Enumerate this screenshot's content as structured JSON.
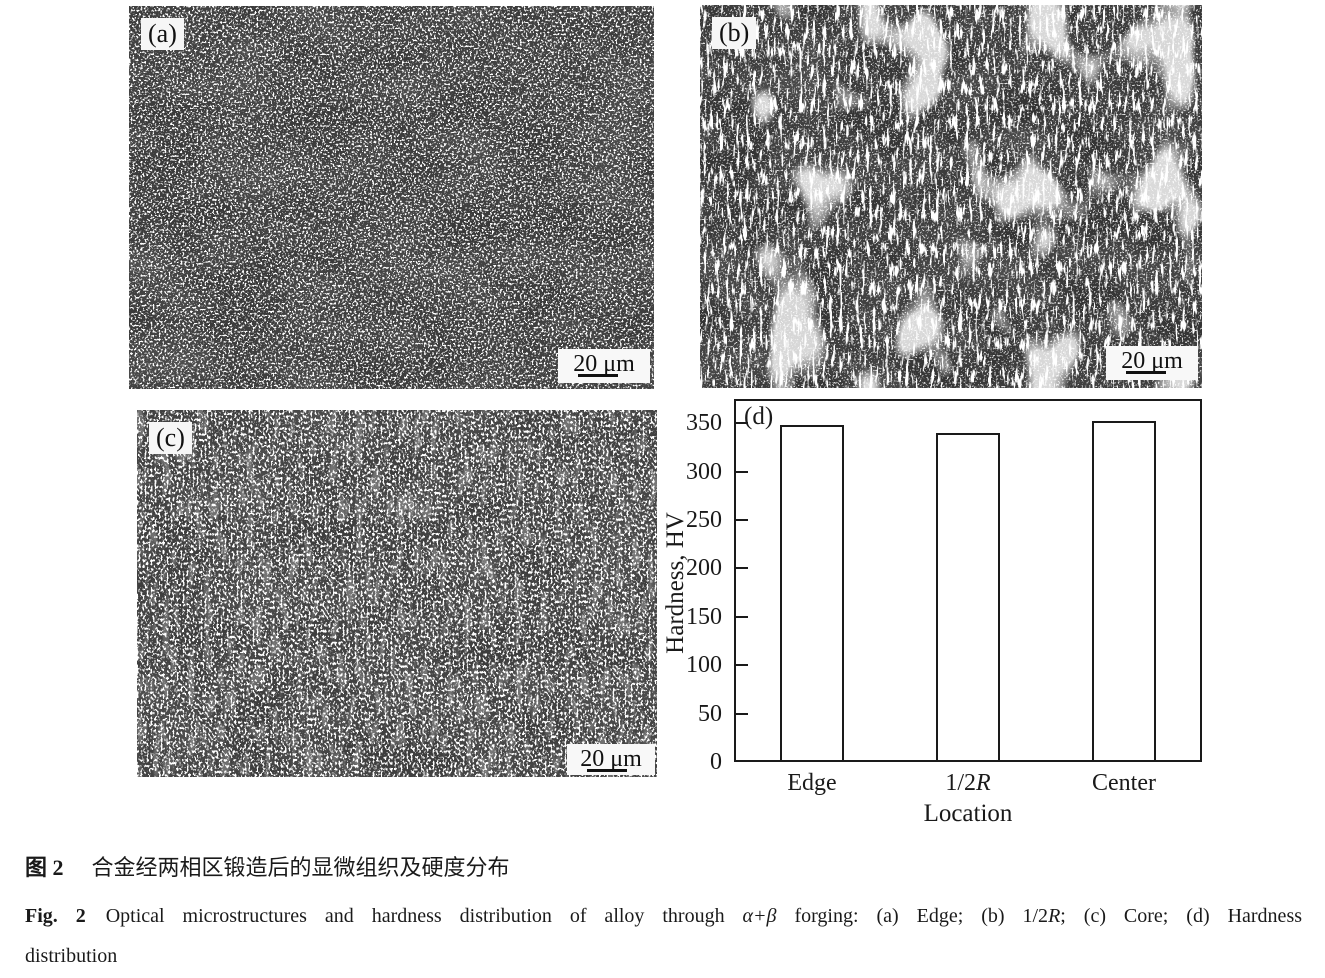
{
  "panels": {
    "a": {
      "label": "(a)",
      "scale_text": "20 μm"
    },
    "b": {
      "label": "(b)",
      "scale_text": "20 μm"
    },
    "c": {
      "label": "(c)",
      "scale_text": "20 μm"
    }
  },
  "chart_data": {
    "type": "bar",
    "panel_label": "(d)",
    "categories": [
      "Edge",
      "1/2R",
      "Center"
    ],
    "values": [
      348,
      340,
      352
    ],
    "title": "",
    "xlabel": "Location",
    "ylabel": "Hardness, HV",
    "ylim": [
      0,
      375
    ],
    "yticks": [
      0,
      50,
      100,
      150,
      200,
      250,
      300,
      350
    ],
    "grid": false,
    "legend": "none",
    "bar_fill": "#ffffff",
    "bar_border": "#1a1a1a",
    "category_segments": [
      [
        {
          "t": "Edge"
        }
      ],
      [
        {
          "t": "1/2"
        },
        {
          "t": "R",
          "s": "i"
        }
      ],
      [
        {
          "t": "Center"
        }
      ]
    ]
  },
  "caption": {
    "zh_label": "图 2",
    "zh_text": "合金经两相区锻造后的显微组织及硬度分布",
    "en_label": "Fig. 2",
    "en_line1_segments": [
      {
        "t": "Optical microstructures and hardness distribution of alloy through "
      },
      {
        "t": "α+β",
        "s": "i"
      },
      {
        "t": " forging: (a) Edge; (b) 1/2"
      },
      {
        "t": "R",
        "s": "i"
      },
      {
        "t": "; (c) Core; (d) Hardness"
      }
    ],
    "en_line2": "distribution"
  },
  "colors": {
    "ink": "#1a1a1a",
    "page_bg": "#ffffff",
    "micrograph_bg_a": "#3a3a3a",
    "micrograph_bg_b": "#343434",
    "micrograph_bg_c": "#3d3d3d"
  }
}
